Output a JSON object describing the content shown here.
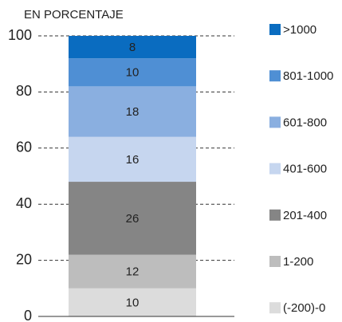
{
  "chart_data": {
    "type": "stacked-bar",
    "title": "EN PORCENTAJE",
    "categories": [
      null
    ],
    "series": [
      {
        "name": "(-200)-0",
        "color": "#dcdcdc",
        "values": [
          10
        ]
      },
      {
        "name": "1-200",
        "color": "#bdbdbd",
        "values": [
          12
        ]
      },
      {
        "name": "201-400",
        "color": "#858585",
        "values": [
          26
        ]
      },
      {
        "name": "401-600",
        "color": "#c6d6ef",
        "values": [
          16
        ]
      },
      {
        "name": "601-800",
        "color": "#8aafe0",
        "values": [
          18
        ]
      },
      {
        "name": "801-1000",
        "color": "#4f8fd4",
        "values": [
          10
        ]
      },
      {
        "name": ">1000",
        "color": "#0a6cc0",
        "values": [
          8
        ]
      }
    ],
    "ylim": [
      0,
      100
    ],
    "yticks": [
      0,
      20,
      40,
      60,
      80,
      100
    ],
    "grid": true,
    "legend": "right"
  }
}
